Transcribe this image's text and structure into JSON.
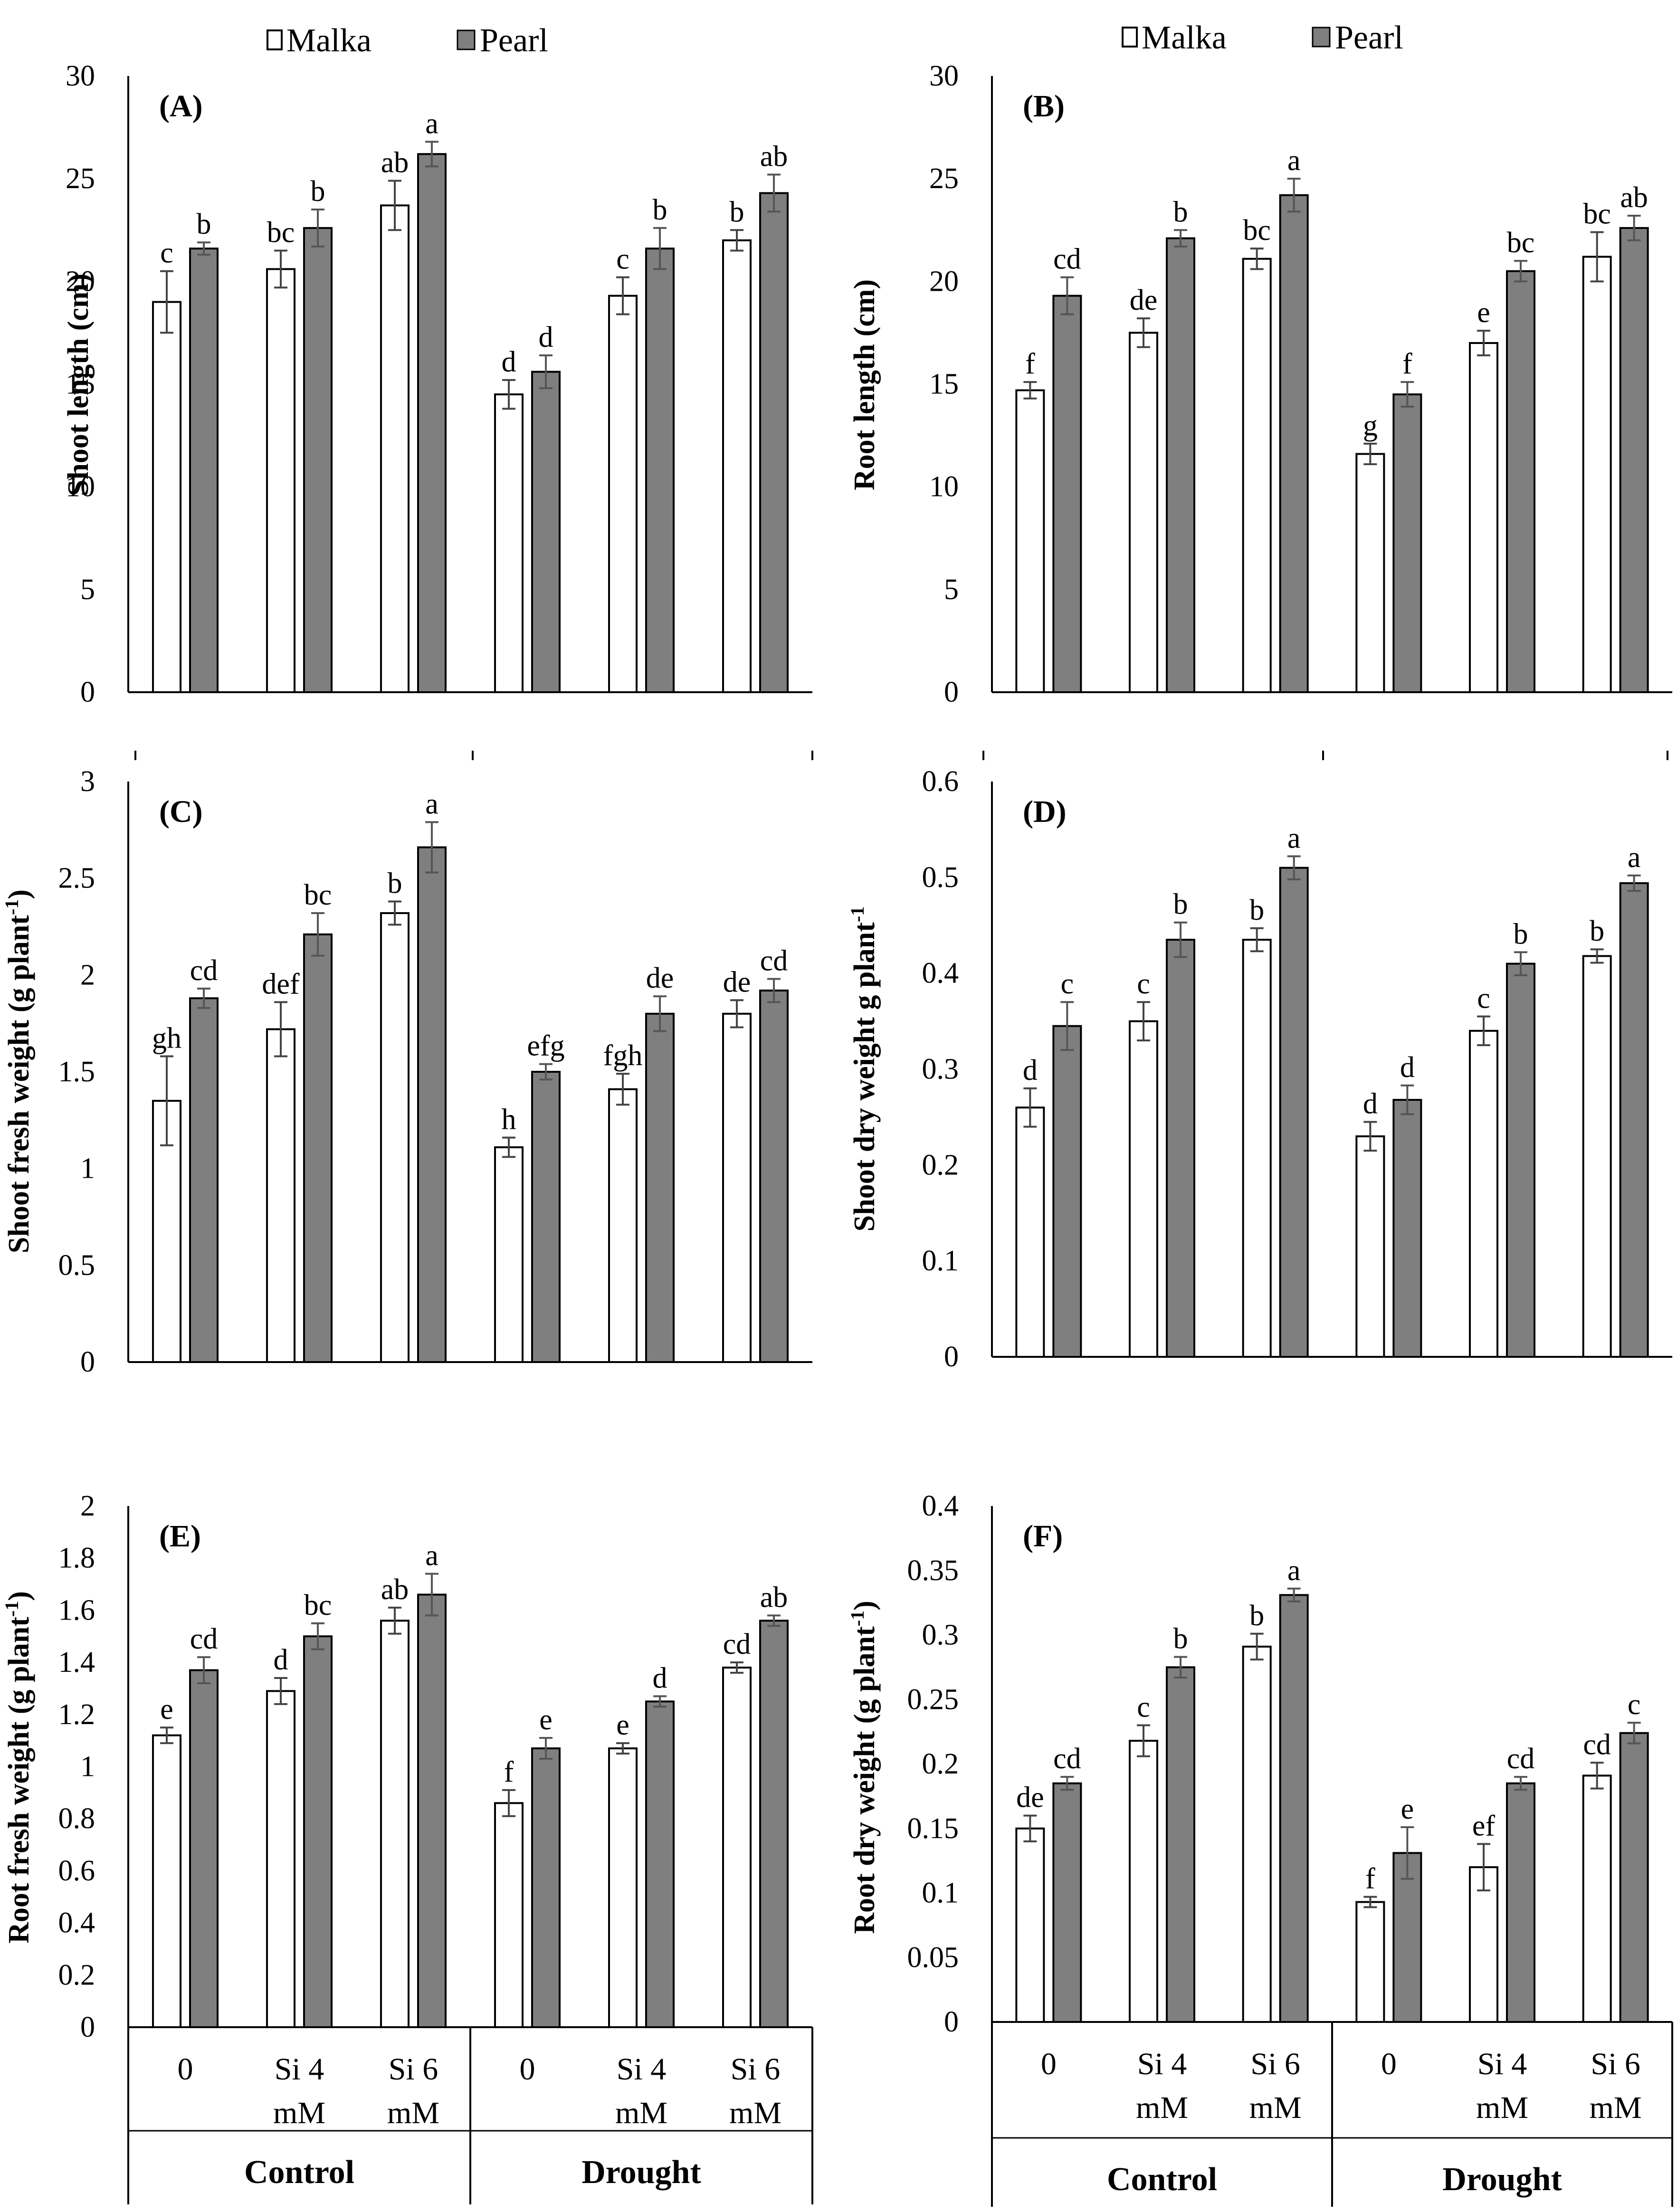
{
  "legend": {
    "malka": "Malka",
    "pearl": "Pearl"
  },
  "colors": {
    "malka": "#ffffff",
    "pearl": "#7f7f7f",
    "axis": "#000000"
  },
  "x_categories": [
    "0",
    "Si 4\nmM",
    "Si 6\nmM",
    "0",
    "Si 4\nmM",
    "Si 6\nmM"
  ],
  "groups": [
    "Control",
    "Drought"
  ],
  "chart_data": [
    {
      "type": "bar",
      "panel": "(A)",
      "ylabel": "Shoot length (cm)",
      "ylim": [
        0,
        30
      ],
      "yticks": [
        "0",
        "5",
        "10",
        "15",
        "20",
        "25",
        "30"
      ],
      "series": [
        {
          "name": "Malka",
          "values": [
            19.0,
            20.6,
            23.7,
            14.5,
            19.3,
            22.0
          ],
          "errors": [
            1.5,
            0.9,
            1.2,
            0.7,
            0.9,
            0.5
          ],
          "letters": [
            "c",
            "bc",
            "ab",
            "d",
            "c",
            "b"
          ]
        },
        {
          "name": "Pearl",
          "values": [
            21.6,
            22.6,
            26.2,
            15.6,
            21.6,
            24.3
          ],
          "errors": [
            0.3,
            0.9,
            0.6,
            0.8,
            1.0,
            0.9
          ],
          "letters": [
            "b",
            "b",
            "a",
            "d",
            "b",
            "ab"
          ]
        }
      ]
    },
    {
      "type": "bar",
      "panel": "(B)",
      "ylabel": "Root length (cm)",
      "ylim": [
        0,
        30
      ],
      "yticks": [
        "0",
        "5",
        "10",
        "15",
        "20",
        "25",
        "30"
      ],
      "series": [
        {
          "name": "Malka",
          "values": [
            14.7,
            17.5,
            21.1,
            11.6,
            17.0,
            21.2
          ],
          "errors": [
            0.4,
            0.7,
            0.5,
            0.5,
            0.6,
            1.2
          ],
          "letters": [
            "f",
            "de",
            "bc",
            "g",
            "e",
            "bc"
          ]
        },
        {
          "name": "Pearl",
          "values": [
            19.3,
            22.1,
            24.2,
            14.5,
            20.5,
            22.6
          ],
          "errors": [
            0.9,
            0.4,
            0.8,
            0.6,
            0.5,
            0.6
          ],
          "letters": [
            "cd",
            "b",
            "a",
            "f",
            "bc",
            "ab"
          ]
        }
      ]
    },
    {
      "type": "bar",
      "panel": "(C)",
      "ylabel": "Shoot  fresh weight (g plant",
      "ylim": [
        0,
        3
      ],
      "yticks": [
        "0",
        "0.5",
        "1",
        "1.5",
        "2",
        "2.5",
        "3"
      ],
      "series": [
        {
          "name": "Malka",
          "values": [
            1.35,
            1.72,
            2.32,
            1.11,
            1.41,
            1.8
          ],
          "errors": [
            0.23,
            0.14,
            0.06,
            0.05,
            0.08,
            0.07
          ],
          "letters": [
            "gh",
            "def",
            "b",
            "h",
            "fgh",
            "de"
          ]
        },
        {
          "name": "Pearl",
          "values": [
            1.88,
            2.21,
            2.66,
            1.5,
            1.8,
            1.92
          ],
          "errors": [
            0.05,
            0.11,
            0.13,
            0.04,
            0.09,
            0.06
          ],
          "letters": [
            "cd",
            "bc",
            "a",
            "efg",
            "de",
            "cd"
          ]
        }
      ]
    },
    {
      "type": "bar",
      "panel": "(D)",
      "ylabel": "Shoot dry weight g plant",
      "ylim": [
        0,
        0.6
      ],
      "yticks": [
        "0",
        "0.1",
        "0.2",
        "0.3",
        "0.4",
        "0.5",
        "0.6"
      ],
      "series": [
        {
          "name": "Malka",
          "values": [
            0.26,
            0.35,
            0.435,
            0.23,
            0.34,
            0.418
          ],
          "errors": [
            0.02,
            0.02,
            0.012,
            0.015,
            0.015,
            0.007
          ],
          "letters": [
            "d",
            "c",
            "b",
            "d",
            "c",
            "b"
          ]
        },
        {
          "name": "Pearl",
          "values": [
            0.345,
            0.435,
            0.51,
            0.268,
            0.41,
            0.494
          ],
          "errors": [
            0.025,
            0.018,
            0.012,
            0.015,
            0.012,
            0.008
          ],
          "letters": [
            "c",
            "b",
            "a",
            "d",
            "b",
            "a"
          ]
        }
      ]
    },
    {
      "type": "bar",
      "panel": "(E)",
      "ylabel": "Root fresh weight (g plant",
      "ylim": [
        0,
        2
      ],
      "yticks": [
        "0",
        "0.2",
        "0.4",
        "0.6",
        "0.8",
        "1",
        "1.2",
        "1.4",
        "1.6",
        "1.8",
        "2"
      ],
      "series": [
        {
          "name": "Malka",
          "values": [
            1.12,
            1.29,
            1.56,
            0.86,
            1.07,
            1.38
          ],
          "errors": [
            0.03,
            0.05,
            0.05,
            0.05,
            0.02,
            0.02
          ],
          "letters": [
            "e",
            "d",
            "ab",
            "f",
            "e",
            "cd"
          ]
        },
        {
          "name": "Pearl",
          "values": [
            1.37,
            1.5,
            1.66,
            1.07,
            1.25,
            1.56
          ],
          "errors": [
            0.05,
            0.05,
            0.08,
            0.04,
            0.02,
            0.02
          ],
          "letters": [
            "cd",
            "bc",
            "a",
            "e",
            "d",
            "ab"
          ]
        }
      ]
    },
    {
      "type": "bar",
      "panel": "(F)",
      "ylabel": "Root dry weight (g plant",
      "ylim": [
        0,
        0.4
      ],
      "yticks": [
        "0",
        "0.05",
        "0.1",
        "0.15",
        "0.2",
        "0.25",
        "0.3",
        "0.35",
        "0.4"
      ],
      "series": [
        {
          "name": "Malka",
          "values": [
            0.15,
            0.218,
            0.291,
            0.093,
            0.12,
            0.191
          ],
          "errors": [
            0.01,
            0.012,
            0.01,
            0.004,
            0.018,
            0.01
          ],
          "letters": [
            "de",
            "c",
            "b",
            "f",
            "ef",
            "cd"
          ]
        },
        {
          "name": "Pearl",
          "values": [
            0.185,
            0.275,
            0.331,
            0.131,
            0.185,
            0.224
          ],
          "errors": [
            0.005,
            0.008,
            0.005,
            0.02,
            0.005,
            0.008
          ],
          "letters": [
            "cd",
            "b",
            "a",
            "e",
            "cd",
            "c"
          ]
        }
      ]
    }
  ]
}
